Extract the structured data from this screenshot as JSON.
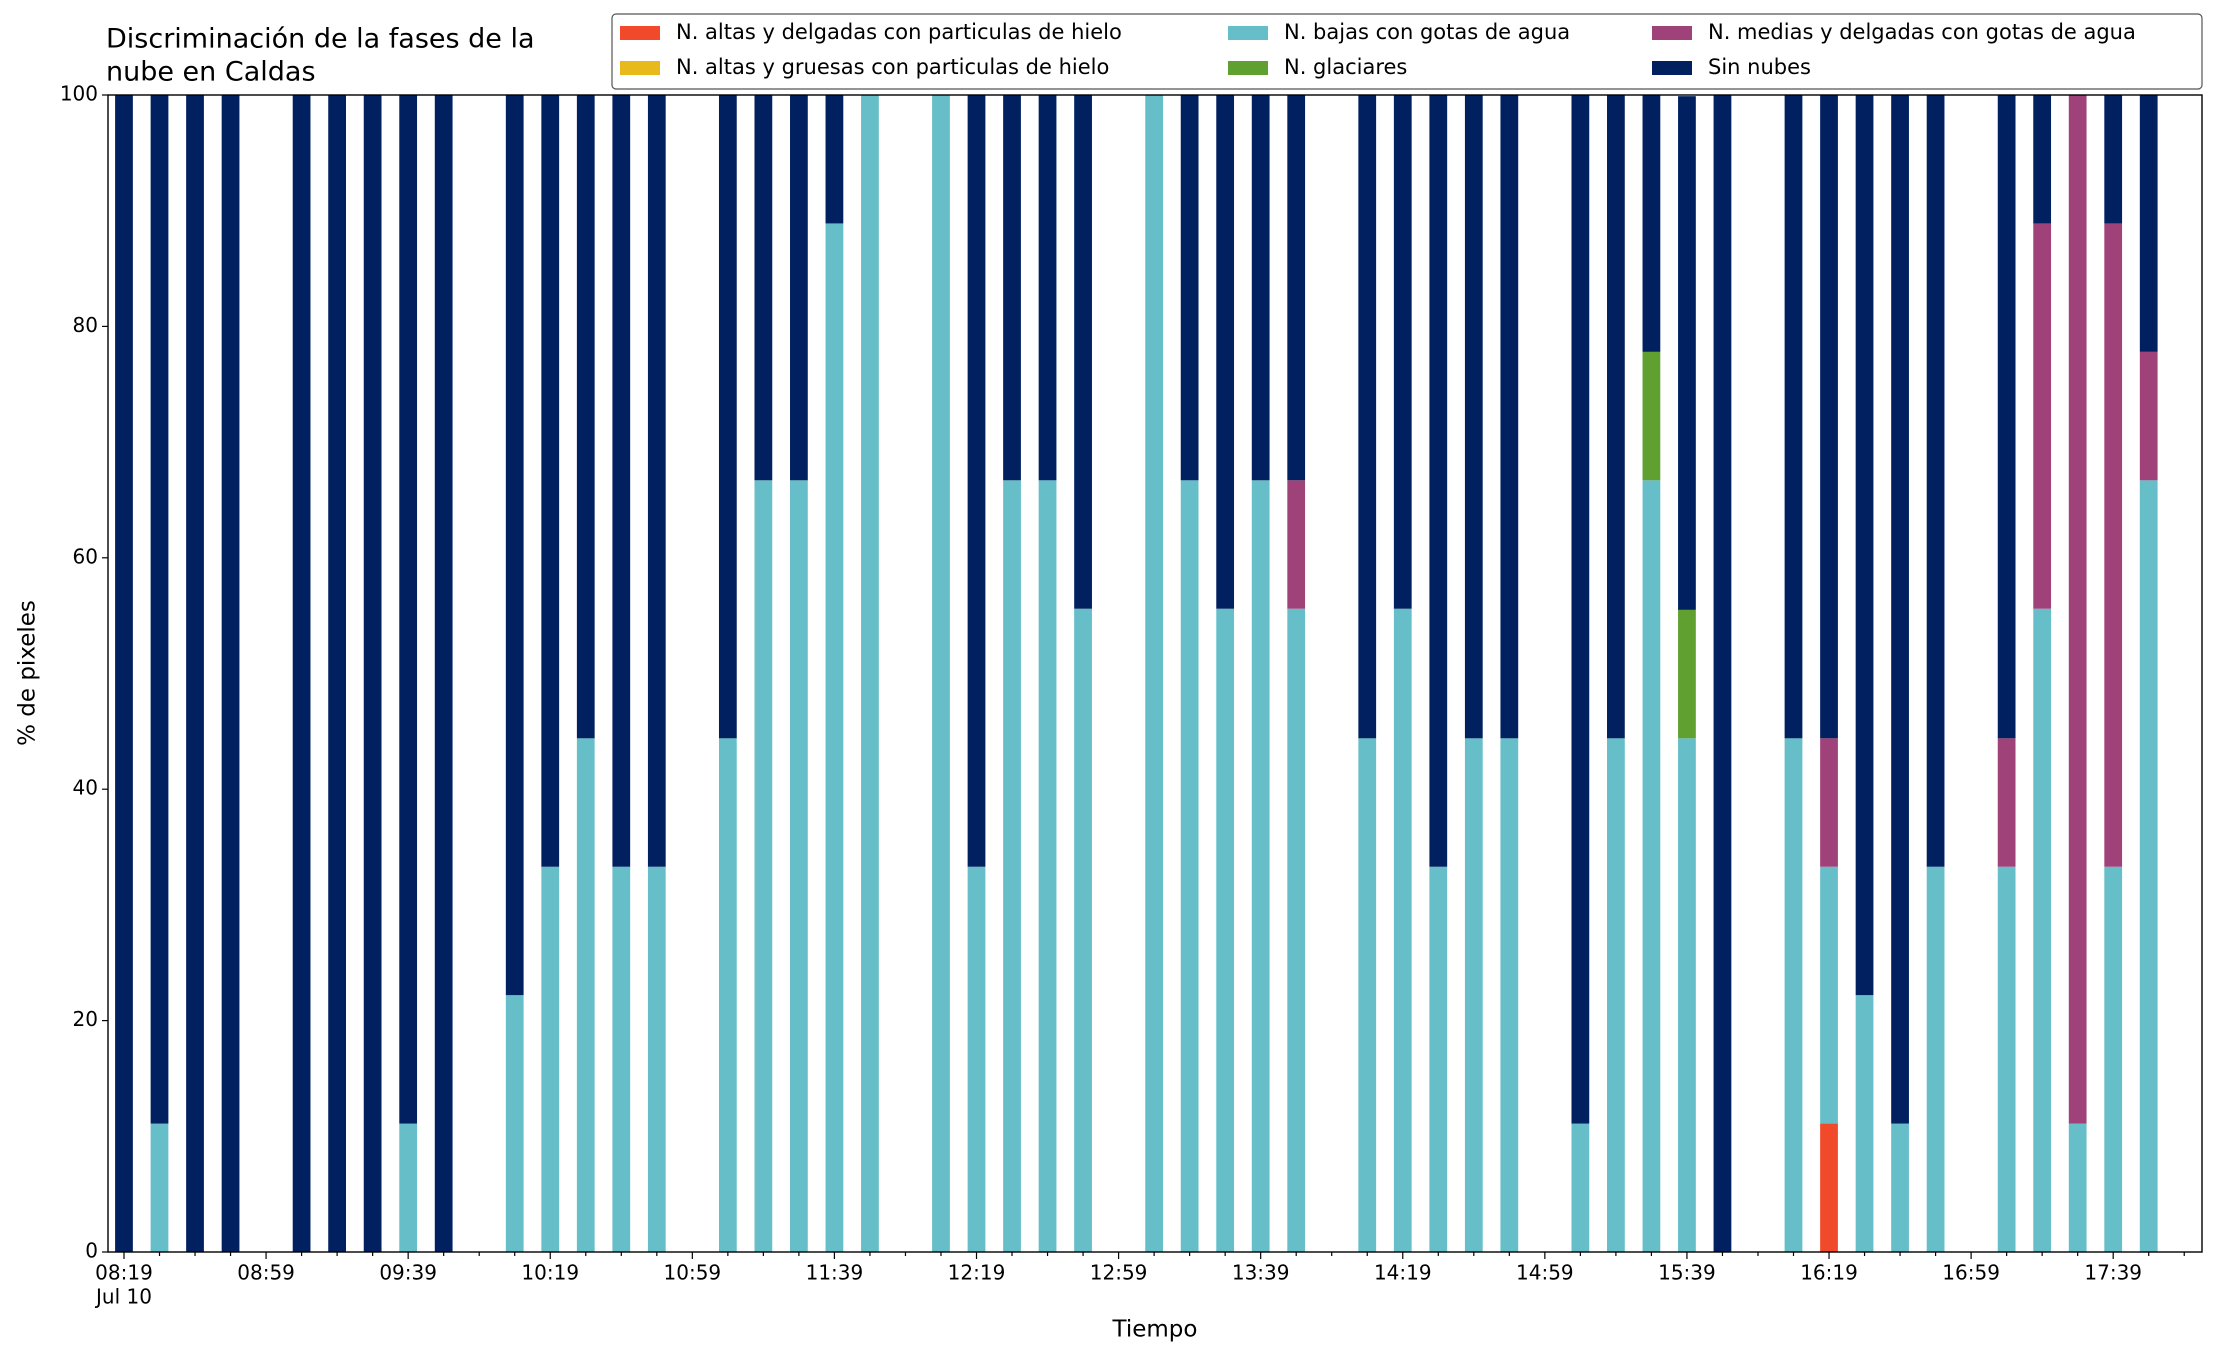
{
  "chart_data": {
    "type": "stacked_bar",
    "title": [
      "Discriminación de la fases de la",
      "nube en Caldas"
    ],
    "x_label": "Tiempo",
    "y_label": "% de pixeles",
    "date_label": "Jul 10",
    "categories": [
      "08:19",
      null,
      null,
      null,
      "08:59",
      null,
      null,
      null,
      "09:39",
      null,
      null,
      null,
      "10:19",
      null,
      null,
      null,
      "10:59",
      null,
      null,
      null,
      "11:39",
      null,
      null,
      null,
      "12:19",
      null,
      null,
      null,
      "12:59",
      null,
      null,
      null,
      "13:39",
      null,
      null,
      null,
      "14:19",
      null,
      null,
      null,
      "14:59",
      null,
      null,
      null,
      "15:39",
      null,
      null,
      null,
      "16:19",
      null,
      null,
      null,
      "16:59",
      null,
      null,
      null,
      "17:39",
      null
    ],
    "series": [
      {
        "name": "N. altas y delgadas con particulas de hielo",
        "color": "#f04a2a",
        "values": [
          0,
          0,
          0,
          0,
          null,
          0,
          0,
          0,
          0,
          0,
          null,
          0,
          0,
          0,
          0,
          0,
          null,
          0,
          0,
          0,
          0,
          0,
          null,
          0,
          0,
          0,
          0,
          0,
          null,
          0,
          0,
          0,
          0,
          0,
          null,
          0,
          0,
          0,
          0,
          0,
          null,
          0,
          0,
          0,
          0,
          0,
          null,
          0,
          11.1,
          0,
          0,
          0,
          null,
          0,
          0,
          0,
          0,
          0
        ]
      },
      {
        "name": "N. altas y gruesas con particulas de hielo",
        "color": "#e8b91a",
        "values": [
          0,
          0,
          0,
          0,
          null,
          0,
          0,
          0,
          0,
          0,
          null,
          0,
          0,
          0,
          0,
          0,
          null,
          0,
          0,
          0,
          0,
          0,
          null,
          0,
          0,
          0,
          0,
          0,
          null,
          0,
          0,
          0,
          0,
          0,
          null,
          0,
          0,
          0,
          0,
          0,
          null,
          0,
          0,
          0,
          0,
          0,
          null,
          0,
          0,
          0,
          0,
          0,
          null,
          0,
          0,
          0,
          0,
          0
        ]
      },
      {
        "name": "N. bajas con gotas de agua",
        "color": "#66bec9",
        "values": [
          0,
          11.1,
          0,
          0,
          null,
          0,
          0,
          0,
          11.1,
          0,
          null,
          22.2,
          33.3,
          44.4,
          33.3,
          33.3,
          null,
          44.4,
          66.7,
          66.7,
          88.9,
          100,
          null,
          100,
          33.3,
          66.7,
          66.7,
          55.6,
          null,
          100,
          66.7,
          55.6,
          66.7,
          55.6,
          null,
          44.4,
          55.6,
          33.3,
          44.4,
          44.4,
          null,
          11.1,
          44.4,
          66.7,
          44.4,
          0,
          null,
          44.4,
          22.2,
          22.2,
          11.1,
          33.3,
          null,
          33.3,
          55.6,
          11.1,
          33.3,
          66.7
        ]
      },
      {
        "name": "N. glaciares",
        "color": "#5fa030",
        "values": [
          0,
          0,
          0,
          0,
          null,
          0,
          0,
          0,
          0,
          0,
          null,
          0,
          0,
          0,
          0,
          0,
          null,
          0,
          0,
          0,
          0,
          0,
          null,
          0,
          0,
          0,
          0,
          0,
          null,
          0,
          0,
          0,
          0,
          0,
          null,
          0,
          0,
          0,
          0,
          0,
          null,
          0,
          0,
          11.1,
          11.1,
          0,
          null,
          0,
          0,
          0,
          0,
          0,
          null,
          0,
          0,
          0,
          0,
          0
        ]
      },
      {
        "name": "N. medias y delgadas con gotas de agua",
        "color": "#a0427a",
        "values": [
          0,
          0,
          0,
          0,
          null,
          0,
          0,
          0,
          0,
          0,
          null,
          0,
          0,
          0,
          0,
          0,
          null,
          0,
          0,
          0,
          0,
          0,
          null,
          0,
          0,
          0,
          0,
          0,
          null,
          0,
          0,
          0,
          0,
          11.1,
          null,
          0,
          0,
          0,
          0,
          0,
          null,
          0,
          0,
          0,
          0,
          0,
          null,
          0,
          11.1,
          0,
          0,
          0,
          null,
          11.1,
          33.3,
          88.9,
          55.6,
          11.1
        ]
      },
      {
        "name": "Sin nubes",
        "color": "#002060",
        "values": [
          100,
          88.9,
          100,
          100,
          null,
          100,
          100,
          100,
          88.9,
          100,
          null,
          77.8,
          66.7,
          55.6,
          66.7,
          66.7,
          null,
          55.6,
          33.3,
          33.3,
          11.1,
          0,
          null,
          0,
          66.7,
          33.3,
          33.3,
          44.4,
          null,
          0,
          33.3,
          44.4,
          33.3,
          33.3,
          null,
          55.6,
          44.4,
          66.7,
          55.6,
          55.6,
          null,
          88.9,
          55.6,
          22.2,
          44.4,
          100,
          null,
          55.6,
          55.6,
          77.8,
          88.9,
          66.7,
          null,
          55.6,
          11.1,
          0,
          11.1,
          22.2
        ]
      }
    ],
    "ylim": [
      0,
      100
    ],
    "yticks": [
      0,
      20,
      40,
      60,
      80,
      100
    ],
    "legend": "upper right"
  }
}
